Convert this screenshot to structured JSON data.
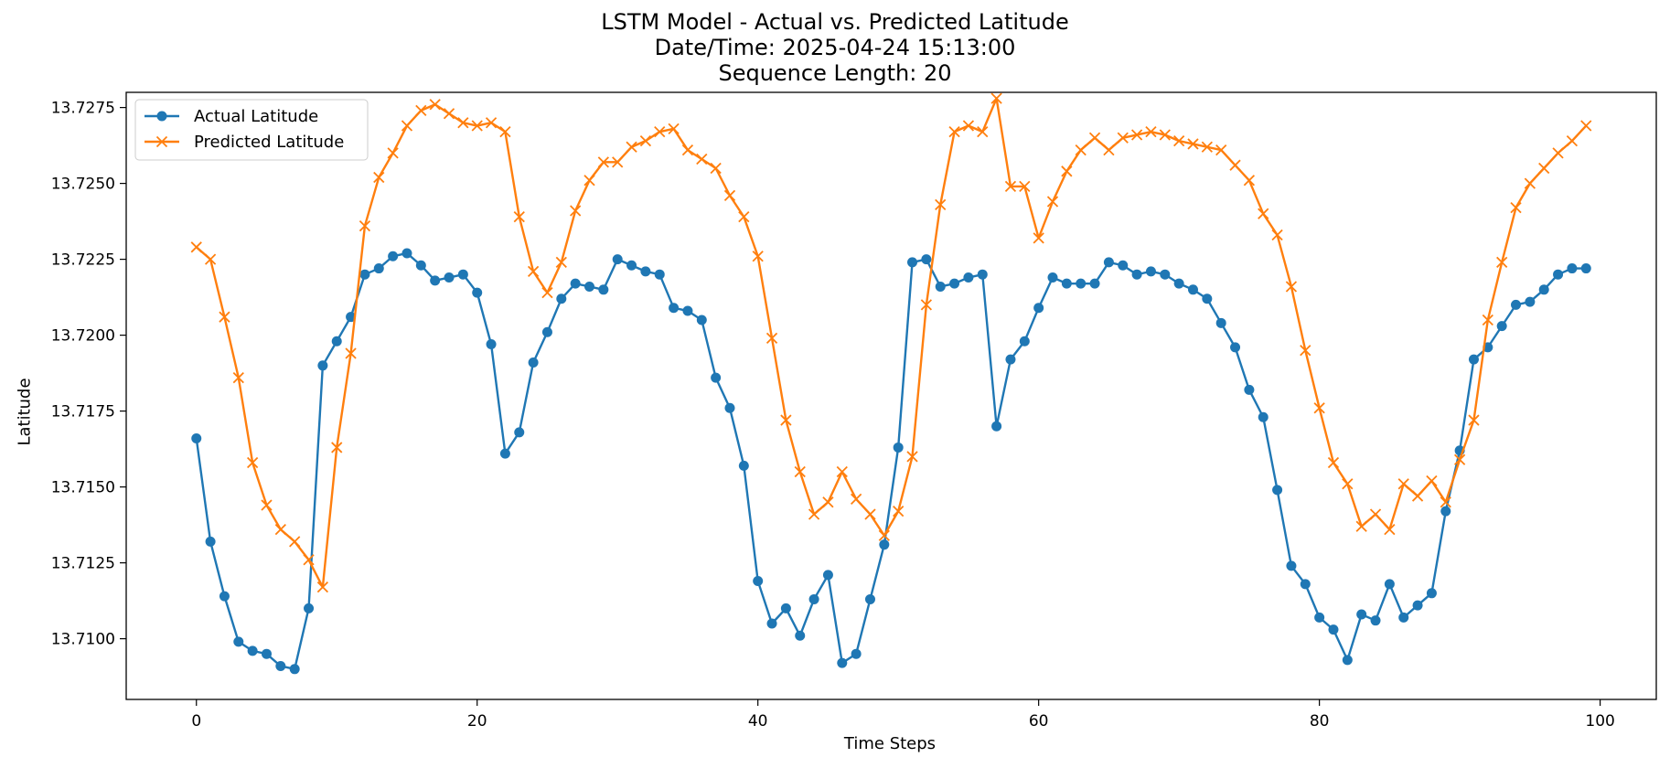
{
  "chart_data": {
    "type": "line",
    "title": "LSTM Model - Actual vs. Predicted Latitude",
    "subtitle_lines": [
      "Date/Time: 2025-04-24 15:13:00",
      "Sequence Length: 20"
    ],
    "xlabel": "Time Steps",
    "ylabel": "Latitude",
    "xlim": [
      -5,
      104
    ],
    "ylim": [
      13.708,
      13.728
    ],
    "xticks": [
      0,
      20,
      40,
      60,
      80,
      100
    ],
    "xtick_labels": [
      "0",
      "20",
      "40",
      "60",
      "80",
      "100"
    ],
    "yticks": [
      13.71,
      13.7125,
      13.715,
      13.7175,
      13.72,
      13.7225,
      13.725,
      13.7275
    ],
    "ytick_labels": [
      "13.7100",
      "13.7125",
      "13.7150",
      "13.7175",
      "13.7200",
      "13.7225",
      "13.7250",
      "13.7275"
    ],
    "grid": false,
    "legend_position": "top-left",
    "x": [
      0,
      1,
      2,
      3,
      4,
      5,
      6,
      7,
      8,
      9,
      10,
      11,
      12,
      13,
      14,
      15,
      16,
      17,
      18,
      19,
      20,
      21,
      22,
      23,
      24,
      25,
      26,
      27,
      28,
      29,
      30,
      31,
      32,
      33,
      34,
      35,
      36,
      37,
      38,
      39,
      40,
      41,
      42,
      43,
      44,
      45,
      46,
      47,
      48,
      49,
      50,
      51,
      52,
      53,
      54,
      55,
      56,
      57,
      58,
      59,
      60,
      61,
      62,
      63,
      64,
      65,
      66,
      67,
      68,
      69,
      70,
      71,
      72,
      73,
      74,
      75,
      76,
      77,
      78,
      79,
      80,
      81,
      82,
      83,
      84,
      85,
      86,
      87,
      88,
      89,
      90,
      91,
      92,
      93,
      94,
      95,
      96,
      97,
      98,
      99
    ],
    "series": [
      {
        "name": "Actual Latitude",
        "color": "#1f77b4",
        "marker": "circle",
        "values": [
          13.7166,
          13.7132,
          13.7114,
          13.7099,
          13.7096,
          13.7095,
          13.7091,
          13.709,
          13.711,
          13.719,
          13.7198,
          13.7206,
          13.722,
          13.7222,
          13.7226,
          13.7227,
          13.7223,
          13.7218,
          13.7219,
          13.722,
          13.7214,
          13.7197,
          13.7161,
          13.7168,
          13.7191,
          13.7201,
          13.7212,
          13.7217,
          13.7216,
          13.7215,
          13.7225,
          13.7223,
          13.7221,
          13.722,
          13.7209,
          13.7208,
          13.7205,
          13.7186,
          13.7176,
          13.7157,
          13.7119,
          13.7105,
          13.711,
          13.7101,
          13.7113,
          13.7121,
          13.7092,
          13.7095,
          13.7113,
          13.7131,
          13.7163,
          13.7224,
          13.7225,
          13.7216,
          13.7217,
          13.7219,
          13.722,
          13.717,
          13.7192,
          13.7198,
          13.7209,
          13.7219,
          13.7217,
          13.7217,
          13.7217,
          13.7224,
          13.7223,
          13.722,
          13.7221,
          13.722,
          13.7217,
          13.7215,
          13.7212,
          13.7204,
          13.7196,
          13.7182,
          13.7173,
          13.7149,
          13.7124,
          13.7118,
          13.7107,
          13.7103,
          13.7093,
          13.7108,
          13.7106,
          13.7118,
          13.7107,
          13.7111,
          13.7115,
          13.7142,
          13.7162,
          13.7192,
          13.7196,
          13.7203,
          13.721,
          13.7211,
          13.7215,
          13.722,
          13.7222,
          13.7222
        ]
      },
      {
        "name": "Predicted Latitude",
        "color": "#ff7f0e",
        "marker": "x",
        "values": [
          13.7229,
          13.7225,
          13.7206,
          13.7186,
          13.7158,
          13.7144,
          13.7136,
          13.7132,
          13.7126,
          13.7117,
          13.7163,
          13.7194,
          13.7236,
          13.7252,
          13.726,
          13.7269,
          13.7274,
          13.7276,
          13.7273,
          13.727,
          13.7269,
          13.727,
          13.7267,
          13.7239,
          13.7221,
          13.7214,
          13.7224,
          13.7241,
          13.7251,
          13.7257,
          13.7257,
          13.7262,
          13.7264,
          13.7267,
          13.7268,
          13.7261,
          13.7258,
          13.7255,
          13.7246,
          13.7239,
          13.7226,
          13.7199,
          13.7172,
          13.7155,
          13.7141,
          13.7145,
          13.7155,
          13.7146,
          13.7141,
          13.7134,
          13.7142,
          13.716,
          13.721,
          13.7243,
          13.7267,
          13.7269,
          13.7267,
          13.7278,
          13.7249,
          13.7249,
          13.7232,
          13.7244,
          13.7254,
          13.7261,
          13.7265,
          13.7261,
          13.7265,
          13.7266,
          13.7267,
          13.7266,
          13.7264,
          13.7263,
          13.7262,
          13.7261,
          13.7256,
          13.7251,
          13.724,
          13.7233,
          13.7216,
          13.7195,
          13.7176,
          13.7158,
          13.7151,
          13.7137,
          13.7141,
          13.7136,
          13.7151,
          13.7147,
          13.7152,
          13.7145,
          13.7159,
          13.7172,
          13.7205,
          13.7224,
          13.7242,
          13.725,
          13.7255,
          13.726,
          13.7264,
          13.7269
        ]
      }
    ]
  }
}
